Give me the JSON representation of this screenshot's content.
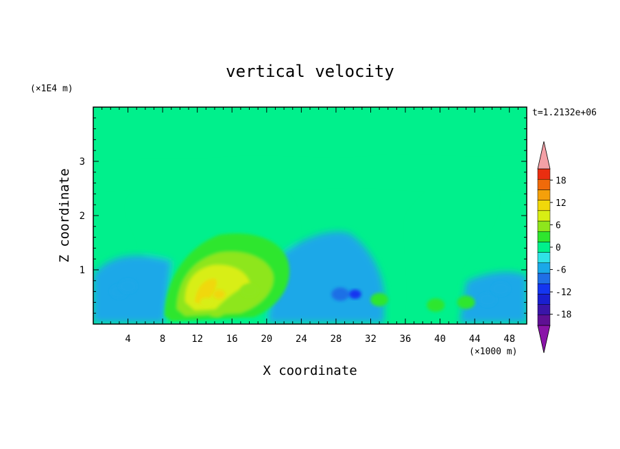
{
  "chart_data": {
    "type": "heatmap",
    "title": "vertical velocity",
    "xlabel": "X coordinate",
    "ylabel": "Z coordinate",
    "x_unit_label": "(×1000 m)",
    "y_unit_label": "(×1E4 m)",
    "time_label": "t=1.2132e+06",
    "xlim": [
      0,
      50
    ],
    "ylim": [
      0,
      4
    ],
    "x_ticks": [
      4,
      8,
      12,
      16,
      20,
      24,
      28,
      32,
      36,
      40,
      44,
      48
    ],
    "y_ticks": [
      1,
      2,
      3
    ],
    "colorbar": {
      "ticks": [
        18,
        12,
        6,
        0,
        -6,
        -12,
        -18
      ],
      "levels": [
        -21,
        -18,
        -15,
        -12,
        -9,
        -6,
        -3,
        0,
        3,
        6,
        9,
        12,
        15,
        18,
        21
      ],
      "colors": [
        "#5f1094",
        "#3a15a8",
        "#1a1fcf",
        "#1436f0",
        "#1f6fe6",
        "#1aa8e8",
        "#2fe2e6",
        "#00f08c",
        "#2ee62e",
        "#8ee61c",
        "#d8ee14",
        "#f0d80a",
        "#f4a00a",
        "#f06a0a",
        "#ea2e10"
      ],
      "under_color": "#8a14a8",
      "over_color": "#f4a0a6"
    },
    "features": [
      {
        "x": 14.5,
        "z": 0.55,
        "w": 14.0
      },
      {
        "x": 18.0,
        "z": 0.62,
        "w": 7.0
      },
      {
        "x": 13.0,
        "z": 0.4,
        "w": 10.0
      },
      {
        "x": 28.5,
        "z": 0.55,
        "w": -7.5
      },
      {
        "x": 30.2,
        "z": 0.55,
        "w": -10.5
      },
      {
        "x": 3.0,
        "z": 0.6,
        "w": -5.0
      },
      {
        "x": 4.0,
        "z": 0.7,
        "w": -3.5
      },
      {
        "x": 39.5,
        "z": 0.35,
        "w": 4.5
      },
      {
        "x": 43.0,
        "z": 0.4,
        "w": 5.0
      },
      {
        "x": 45.5,
        "z": 0.45,
        "w": -5.0
      },
      {
        "x": 47.0,
        "z": 0.65,
        "w": -4.0
      },
      {
        "x": 33.0,
        "z": 0.45,
        "w": 5.0
      }
    ]
  }
}
